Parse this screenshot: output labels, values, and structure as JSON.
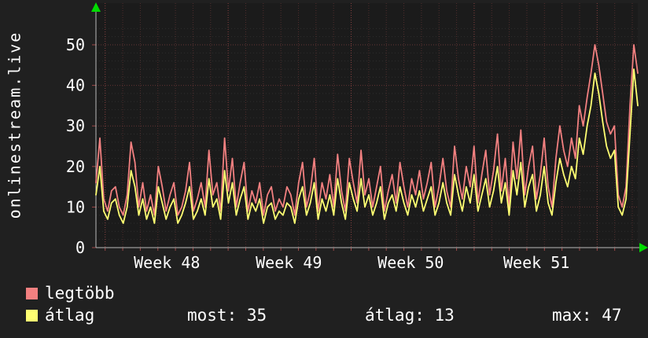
{
  "chart_data": {
    "type": "line",
    "ylabel_vertical": "onlinestream.live",
    "ylim": [
      0,
      55
    ],
    "y_ticks": [
      0,
      10,
      20,
      30,
      40,
      50
    ],
    "x_ticks": [
      {
        "label": "Week 48",
        "pos": 0.131
      },
      {
        "label": "Week 49",
        "pos": 0.356
      },
      {
        "label": "Week 50",
        "pos": 0.581
      },
      {
        "label": "Week 51",
        "pos": 0.813
      }
    ],
    "week_starts": [
      0.017,
      0.244,
      0.468,
      0.697,
      0.929
    ],
    "grid": true,
    "legend_position": "bottom-left",
    "series": [
      {
        "name": "legtöbb",
        "color": "#f28080",
        "values": [
          16,
          27,
          12,
          9,
          14,
          15,
          10,
          8,
          13,
          26,
          21,
          10,
          16,
          9,
          13,
          8,
          20,
          15,
          9,
          13,
          16,
          8,
          10,
          14,
          21,
          9,
          12,
          16,
          10,
          24,
          13,
          16,
          9,
          27,
          14,
          22,
          10,
          16,
          21,
          9,
          14,
          11,
          16,
          8,
          13,
          15,
          9,
          12,
          10,
          15,
          13,
          8,
          16,
          21,
          10,
          14,
          22,
          9,
          16,
          12,
          18,
          10,
          23,
          14,
          9,
          22,
          16,
          11,
          24,
          13,
          17,
          10,
          15,
          20,
          9,
          14,
          18,
          11,
          21,
          15,
          10,
          17,
          13,
          19,
          12,
          16,
          21,
          10,
          15,
          22,
          14,
          10,
          25,
          17,
          12,
          20,
          15,
          25,
          11,
          18,
          24,
          13,
          19,
          28,
          14,
          22,
          10,
          26,
          17,
          29,
          13,
          20,
          25,
          12,
          18,
          27,
          15,
          10,
          22,
          30,
          24,
          20,
          27,
          22,
          35,
          30,
          37,
          43,
          50,
          45,
          38,
          31,
          28,
          30,
          13,
          10,
          15,
          35,
          50,
          43
        ]
      },
      {
        "name": "átlag",
        "color": "#ffff72",
        "values": [
          13,
          20,
          9,
          7,
          11,
          12,
          8,
          6,
          10,
          19,
          15,
          8,
          12,
          7,
          10,
          6,
          15,
          11,
          7,
          10,
          12,
          6,
          8,
          11,
          15,
          7,
          9,
          12,
          8,
          17,
          10,
          12,
          7,
          19,
          11,
          16,
          8,
          12,
          15,
          7,
          11,
          9,
          12,
          6,
          10,
          11,
          7,
          9,
          8,
          11,
          10,
          6,
          12,
          15,
          8,
          11,
          16,
          7,
          12,
          9,
          13,
          8,
          17,
          11,
          7,
          16,
          12,
          9,
          17,
          10,
          13,
          8,
          11,
          15,
          7,
          11,
          13,
          9,
          15,
          11,
          8,
          13,
          10,
          14,
          9,
          12,
          15,
          8,
          11,
          16,
          11,
          8,
          18,
          13,
          9,
          15,
          11,
          18,
          9,
          13,
          17,
          10,
          14,
          20,
          11,
          16,
          8,
          19,
          13,
          21,
          10,
          15,
          18,
          9,
          13,
          20,
          11,
          8,
          16,
          22,
          18,
          15,
          20,
          17,
          27,
          23,
          30,
          35,
          43,
          38,
          31,
          25,
          22,
          24,
          10,
          8,
          12,
          28,
          44,
          35
        ]
      }
    ],
    "footer_stats": [
      {
        "label": "most:",
        "value": "35"
      },
      {
        "label": "átlag:",
        "value": "13"
      },
      {
        "label": "max:",
        "value": "47"
      }
    ]
  },
  "colors": {
    "background": "#202020",
    "plot_background": "#1b1b1b",
    "text": "#ffffff",
    "grid_major": "#a04848",
    "grid_minor": "#2e2e2e",
    "axis": "#b8b8b8",
    "arrow": "#00dc00"
  }
}
